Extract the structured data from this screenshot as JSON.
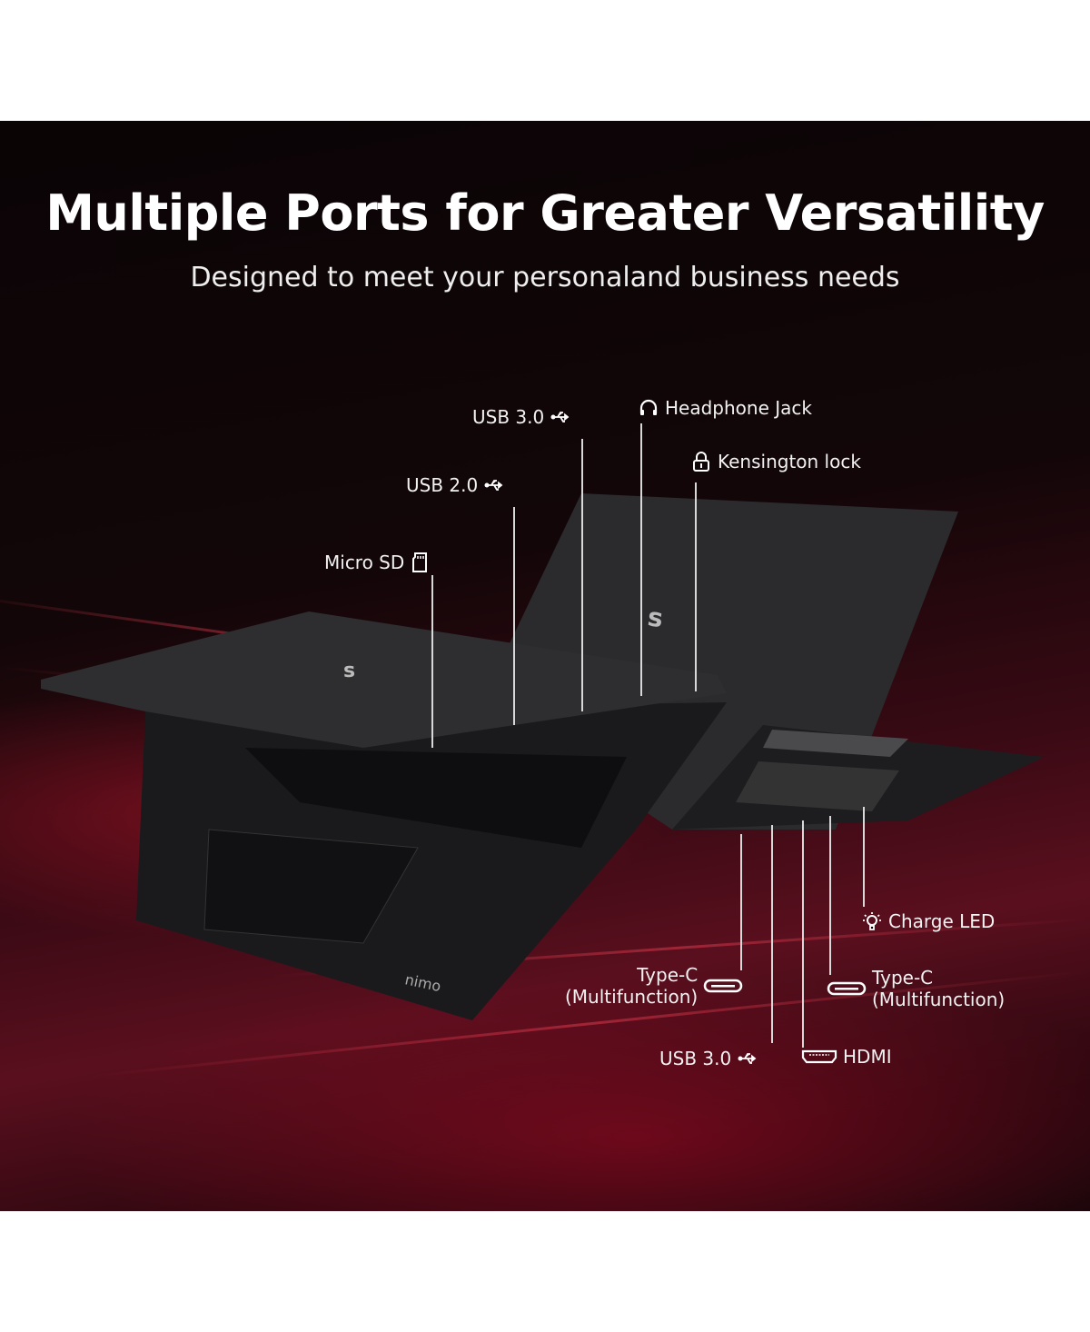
{
  "title": "Multiple Ports for Greater Versatility",
  "subtitle": "Designed to meet your personaland business needs",
  "brand_logo": "nimo",
  "ports_top": [
    {
      "label": "USB 3.0",
      "icon": "usb-icon"
    },
    {
      "label": "Headphone Jack",
      "icon": "headphone-icon"
    },
    {
      "label": "Kensington lock",
      "icon": "lock-icon"
    },
    {
      "label": "USB 2.0",
      "icon": "usb-icon"
    },
    {
      "label": "Micro SD",
      "icon": "sd-card-icon"
    }
  ],
  "ports_bottom": [
    {
      "label": "Charge LED",
      "icon": "bulb-icon"
    },
    {
      "label": "Type-C",
      "sub": "(Multifunction)",
      "icon": "usb-c-icon"
    },
    {
      "label": "Type-C",
      "sub": "(Multifunction)",
      "icon": "usb-c-icon"
    },
    {
      "label": "USB 3.0",
      "icon": "usb-icon"
    },
    {
      "label": "HDMI",
      "icon": "hdmi-icon"
    }
  ],
  "colors": {
    "background": "#0a0405",
    "accent": "#8a1428",
    "text": "#ffffff"
  }
}
